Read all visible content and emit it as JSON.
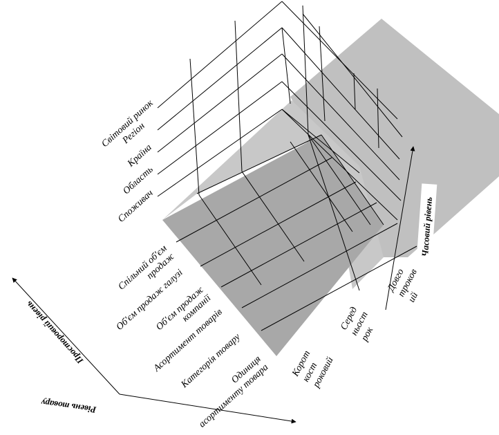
{
  "spatial_levels": [
    "Світовий ринок",
    "Регіон",
    "Країна",
    "Область",
    "Споживач"
  ],
  "product_levels": [
    [
      "Спільний об'єм",
      "продаж"
    ],
    [
      "Об'єм продаж галузі"
    ],
    [
      "Об'єм продаж",
      "компанії"
    ],
    [
      "Асортимент товарів"
    ],
    [
      "Категорія товару"
    ],
    [
      "Одиниця",
      "асортименту товара"
    ]
  ],
  "time_levels": [
    [
      "Корот",
      "кост",
      "роковий"
    ],
    [
      "Серед",
      "ньост",
      "рок"
    ],
    [
      "Довго",
      "троков",
      "ий"
    ]
  ],
  "axes": {
    "time": "Часовий рівень",
    "spatial": "Просторовий рівень",
    "product": "Рівень товару"
  },
  "colors": {
    "front_face": "#a8a8a8",
    "side_face": "#c8c8c8",
    "back_plane": "#c0c0c0",
    "line": "#000000"
  }
}
